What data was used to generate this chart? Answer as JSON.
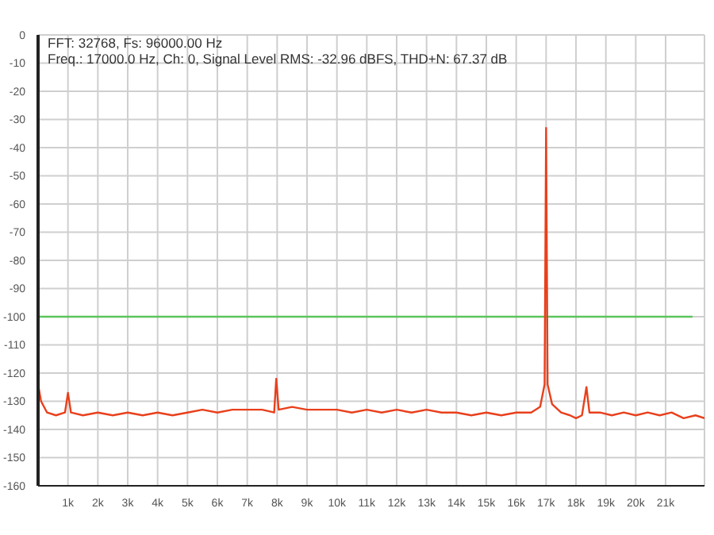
{
  "chart_data": {
    "type": "line",
    "annotations": [
      "FFT: 32768, Fs: 96000.00 Hz",
      "Freq.: 17000.0 Hz, Ch: 0, Signal Level RMS: -32.96 dBFS, THD+N: 67.37 dB"
    ],
    "xlim": [
      0,
      22300
    ],
    "xticks": [
      {
        "value": 1000,
        "label": "1k"
      },
      {
        "value": 2000,
        "label": "2k"
      },
      {
        "value": 3000,
        "label": "3k"
      },
      {
        "value": 4000,
        "label": "4k"
      },
      {
        "value": 5000,
        "label": "5k"
      },
      {
        "value": 6000,
        "label": "6k"
      },
      {
        "value": 7000,
        "label": "7k"
      },
      {
        "value": 8000,
        "label": "8k"
      },
      {
        "value": 9000,
        "label": "9k"
      },
      {
        "value": 10000,
        "label": "10k"
      },
      {
        "value": 11000,
        "label": "11k"
      },
      {
        "value": 12000,
        "label": "12k"
      },
      {
        "value": 13000,
        "label": "13k"
      },
      {
        "value": 14000,
        "label": "14k"
      },
      {
        "value": 15000,
        "label": "15k"
      },
      {
        "value": 16000,
        "label": "16k"
      },
      {
        "value": 17000,
        "label": "17k"
      },
      {
        "value": 18000,
        "label": "18k"
      },
      {
        "value": 19000,
        "label": "19k"
      },
      {
        "value": 20000,
        "label": "20k"
      },
      {
        "value": 21000,
        "label": "21k"
      }
    ],
    "ylim": [
      -160,
      0
    ],
    "yticks": [
      -160,
      -150,
      -140,
      -130,
      -120,
      -110,
      -100,
      -90,
      -80,
      -70,
      -60,
      -50,
      -40,
      -30,
      -20,
      -10,
      0
    ],
    "grid": true,
    "marker": "none",
    "line_style": "solid",
    "series": [
      {
        "color": "#5cc45c",
        "x": [
          0,
          5000,
          10000,
          15000,
          21900
        ],
        "values": [
          -100,
          -100,
          -100,
          -100,
          -100
        ]
      },
      {
        "color": "#e8401c",
        "x": [
          0,
          100,
          300,
          600,
          900,
          1000,
          1100,
          1500,
          2000,
          2500,
          3000,
          3500,
          4000,
          4500,
          5000,
          5500,
          6000,
          6500,
          7000,
          7500,
          7900,
          7970,
          8050,
          8500,
          9000,
          9500,
          10000,
          10500,
          11000,
          11500,
          12000,
          12500,
          13000,
          13500,
          14000,
          14500,
          15000,
          15500,
          16000,
          16500,
          16800,
          16950,
          17000,
          17050,
          17200,
          17500,
          17800,
          18000,
          18200,
          18350,
          18450,
          18800,
          19200,
          19600,
          20000,
          20400,
          20800,
          21200,
          21600,
          22000,
          22300
        ],
        "values": [
          -124,
          -130,
          -134,
          -135,
          -134,
          -127,
          -134,
          -135,
          -134,
          -135,
          -134,
          -135,
          -134,
          -135,
          -134,
          -133,
          -134,
          -133,
          -133,
          -133,
          -134,
          -122,
          -133,
          -132,
          -133,
          -133,
          -133,
          -134,
          -133,
          -134,
          -133,
          -134,
          -133,
          -134,
          -134,
          -135,
          -134,
          -135,
          -134,
          -134,
          -132,
          -124,
          -33,
          -124,
          -131,
          -134,
          -135,
          -136,
          -135,
          -125,
          -134,
          -134,
          -135,
          -134,
          -135,
          -134,
          -135,
          -134,
          -136,
          -135,
          -136
        ]
      }
    ]
  }
}
